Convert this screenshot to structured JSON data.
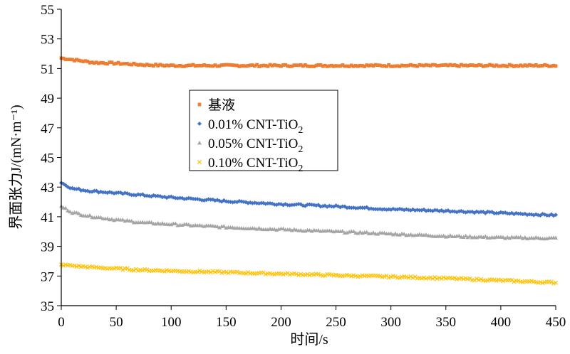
{
  "chart_data": {
    "type": "scatter",
    "title": "",
    "xlabel": "时间/s",
    "ylabel": "界面张力J/(mN·m⁻¹)",
    "xlim": [
      0,
      450
    ],
    "ylim": [
      35,
      55
    ],
    "xticks": [
      0,
      50,
      100,
      150,
      200,
      250,
      300,
      350,
      400,
      450
    ],
    "yticks": [
      35,
      37,
      39,
      41,
      43,
      45,
      47,
      49,
      51,
      53,
      55
    ],
    "grid": false,
    "legend_position": "center-left",
    "series": [
      {
        "name": "基液",
        "marker": "square",
        "color": "#ED7D31",
        "x": [
          0,
          10,
          20,
          30,
          50,
          75,
          100,
          150,
          200,
          250,
          300,
          350,
          400,
          450
        ],
        "y": [
          51.7,
          51.6,
          51.5,
          51.4,
          51.35,
          51.25,
          51.2,
          51.2,
          51.2,
          51.2,
          51.2,
          51.2,
          51.2,
          51.2
        ]
      },
      {
        "name_main": "0.01% CNT-TiO",
        "name_sub": "2",
        "marker": "diamond",
        "color": "#4472C4",
        "x": [
          0,
          10,
          25,
          50,
          75,
          100,
          150,
          200,
          250,
          300,
          350,
          400,
          450
        ],
        "y": [
          43.3,
          42.9,
          42.75,
          42.6,
          42.45,
          42.3,
          42.05,
          41.85,
          41.7,
          41.5,
          41.4,
          41.25,
          41.1
        ]
      },
      {
        "name_main": "0.05% CNT-TiO",
        "name_sub": "2",
        "marker": "triangle",
        "color": "#A5A5A5",
        "x": [
          0,
          10,
          25,
          50,
          75,
          100,
          150,
          200,
          250,
          300,
          350,
          400,
          450
        ],
        "y": [
          41.7,
          41.3,
          41.05,
          40.8,
          40.6,
          40.5,
          40.3,
          40.15,
          40.0,
          39.85,
          39.7,
          39.6,
          39.55
        ]
      },
      {
        "name_main": "0.10% CNT-TiO",
        "name_sub": "2",
        "marker": "x",
        "color": "#FFC000",
        "x": [
          0,
          10,
          25,
          50,
          75,
          100,
          150,
          200,
          250,
          300,
          350,
          400,
          450
        ],
        "y": [
          37.75,
          37.7,
          37.6,
          37.5,
          37.4,
          37.35,
          37.25,
          37.15,
          37.05,
          36.95,
          36.85,
          36.7,
          36.55
        ]
      }
    ]
  }
}
